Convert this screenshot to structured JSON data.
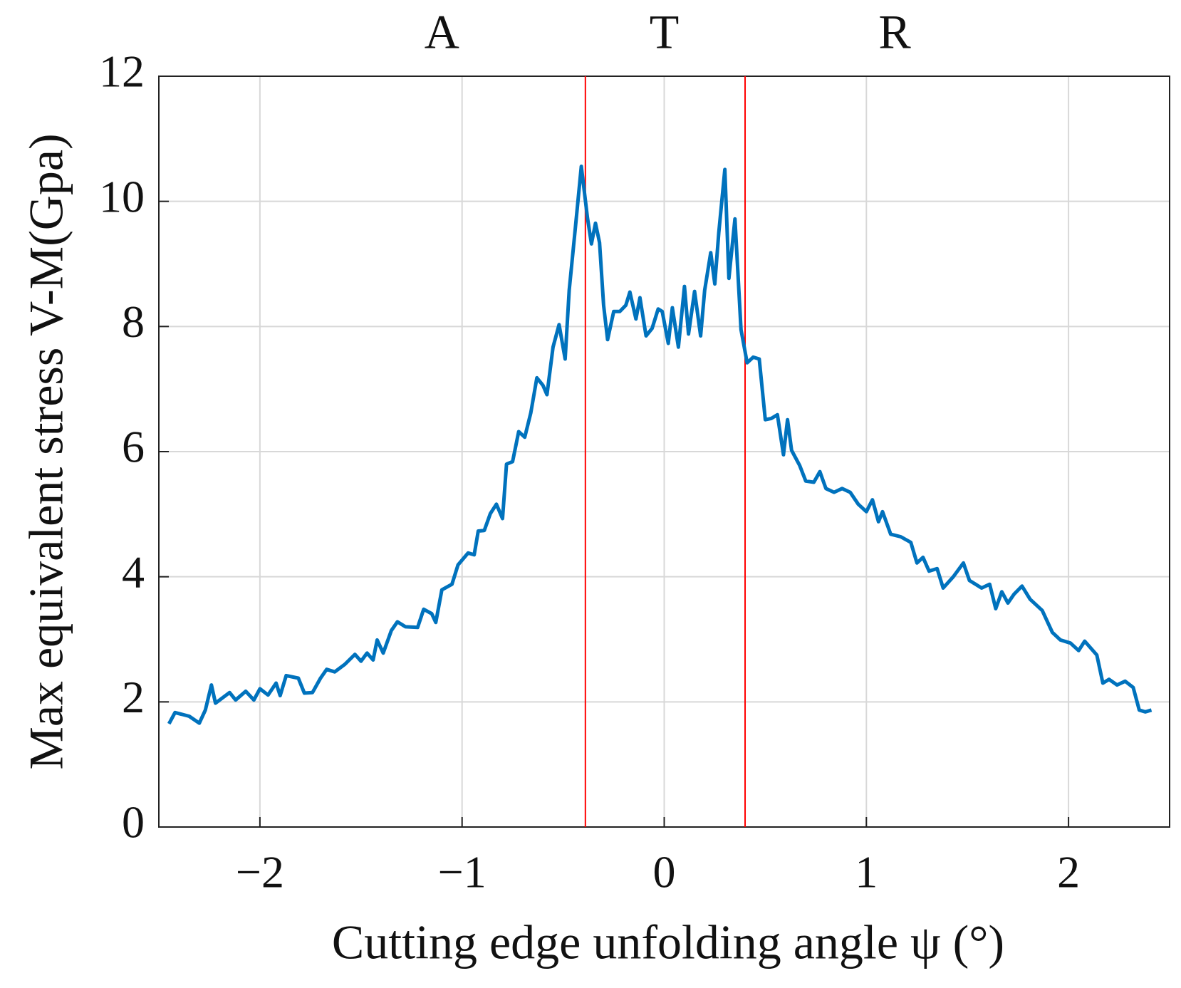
{
  "chart_data": {
    "type": "line",
    "xlabel": "Cutting edge unfolding angle ψ (°)",
    "ylabel": "Max equivalent stress V-M(Gpa)",
    "region_labels": [
      "A",
      "T",
      "R"
    ],
    "vlines": [
      -0.39,
      0.4
    ],
    "vline_color": "#ff0000",
    "grid": true,
    "xlim": [
      -2.5,
      2.5
    ],
    "ylim": [
      0,
      12
    ],
    "xticks": [
      {
        "value": -2,
        "label": "−2"
      },
      {
        "value": -1,
        "label": "−1"
      },
      0,
      1,
      2
    ],
    "yticks": [
      0,
      2,
      4,
      6,
      8,
      10,
      12
    ],
    "x": [
      -2.45,
      -2.42,
      -2.35,
      -2.3,
      -2.27,
      -2.24,
      -2.22,
      -2.15,
      -2.12,
      -2.07,
      -2.03,
      -2.0,
      -1.96,
      -1.92,
      -1.9,
      -1.87,
      -1.81,
      -1.78,
      -1.74,
      -1.7,
      -1.67,
      -1.63,
      -1.58,
      -1.53,
      -1.5,
      -1.47,
      -1.44,
      -1.42,
      -1.39,
      -1.35,
      -1.32,
      -1.28,
      -1.22,
      -1.19,
      -1.15,
      -1.13,
      -1.1,
      -1.05,
      -1.02,
      -0.97,
      -0.94,
      -0.92,
      -0.89,
      -0.86,
      -0.83,
      -0.8,
      -0.78,
      -0.75,
      -0.72,
      -0.69,
      -0.66,
      -0.63,
      -0.6,
      -0.58,
      -0.55,
      -0.52,
      -0.49,
      -0.47,
      -0.44,
      -0.41,
      -0.38,
      -0.36,
      -0.34,
      -0.32,
      -0.3,
      -0.28,
      -0.25,
      -0.22,
      -0.19,
      -0.17,
      -0.14,
      -0.12,
      -0.09,
      -0.06,
      -0.03,
      -0.01,
      0.02,
      0.04,
      0.07,
      0.1,
      0.12,
      0.15,
      0.18,
      0.2,
      0.23,
      0.25,
      0.27,
      0.3,
      0.32,
      0.35,
      0.38,
      0.41,
      0.44,
      0.47,
      0.5,
      0.53,
      0.56,
      0.59,
      0.61,
      0.63,
      0.67,
      0.7,
      0.74,
      0.77,
      0.8,
      0.84,
      0.88,
      0.92,
      0.96,
      1.0,
      1.03,
      1.06,
      1.08,
      1.12,
      1.17,
      1.22,
      1.25,
      1.28,
      1.31,
      1.35,
      1.38,
      1.43,
      1.48,
      1.51,
      1.57,
      1.61,
      1.64,
      1.67,
      1.7,
      1.73,
      1.77,
      1.81,
      1.87,
      1.92,
      1.96,
      2.01,
      2.05,
      2.08,
      2.14,
      2.17,
      2.2,
      2.24,
      2.28,
      2.32,
      2.35,
      2.38,
      2.41
    ],
    "series": [
      {
        "name": "Max equivalent stress",
        "color": "#0072bd",
        "values": [
          1.65,
          1.83,
          1.77,
          1.66,
          1.87,
          2.27,
          1.98,
          2.15,
          2.03,
          2.17,
          2.03,
          2.21,
          2.11,
          2.3,
          2.1,
          2.42,
          2.38,
          2.14,
          2.15,
          2.38,
          2.52,
          2.48,
          2.6,
          2.76,
          2.65,
          2.78,
          2.67,
          2.99,
          2.78,
          3.14,
          3.28,
          3.2,
          3.19,
          3.48,
          3.41,
          3.27,
          3.79,
          3.88,
          4.19,
          4.38,
          4.35,
          4.73,
          4.74,
          5.01,
          5.16,
          4.93,
          5.8,
          5.84,
          6.32,
          6.23,
          6.62,
          7.18,
          7.06,
          6.91,
          7.67,
          8.03,
          7.48,
          8.58,
          9.56,
          10.56,
          9.74,
          9.32,
          9.65,
          9.34,
          8.34,
          7.79,
          8.24,
          8.24,
          8.34,
          8.55,
          8.12,
          8.46,
          7.85,
          7.97,
          8.28,
          8.24,
          7.73,
          8.3,
          7.67,
          8.64,
          7.88,
          8.56,
          7.85,
          8.58,
          9.18,
          8.68,
          9.5,
          10.51,
          8.77,
          9.72,
          7.95,
          7.42,
          7.51,
          7.48,
          6.51,
          6.53,
          6.59,
          5.95,
          6.51,
          6.02,
          5.78,
          5.53,
          5.51,
          5.68,
          5.41,
          5.35,
          5.41,
          5.35,
          5.16,
          5.04,
          5.23,
          4.88,
          5.04,
          4.68,
          4.64,
          4.55,
          4.22,
          4.31,
          4.09,
          4.13,
          3.82,
          4.0,
          4.22,
          3.94,
          3.82,
          3.88,
          3.49,
          3.76,
          3.58,
          3.72,
          3.85,
          3.64,
          3.46,
          3.11,
          2.99,
          2.94,
          2.82,
          2.97,
          2.75,
          2.3,
          2.36,
          2.27,
          2.33,
          2.23,
          1.87,
          1.84,
          1.87
        ]
      }
    ]
  }
}
